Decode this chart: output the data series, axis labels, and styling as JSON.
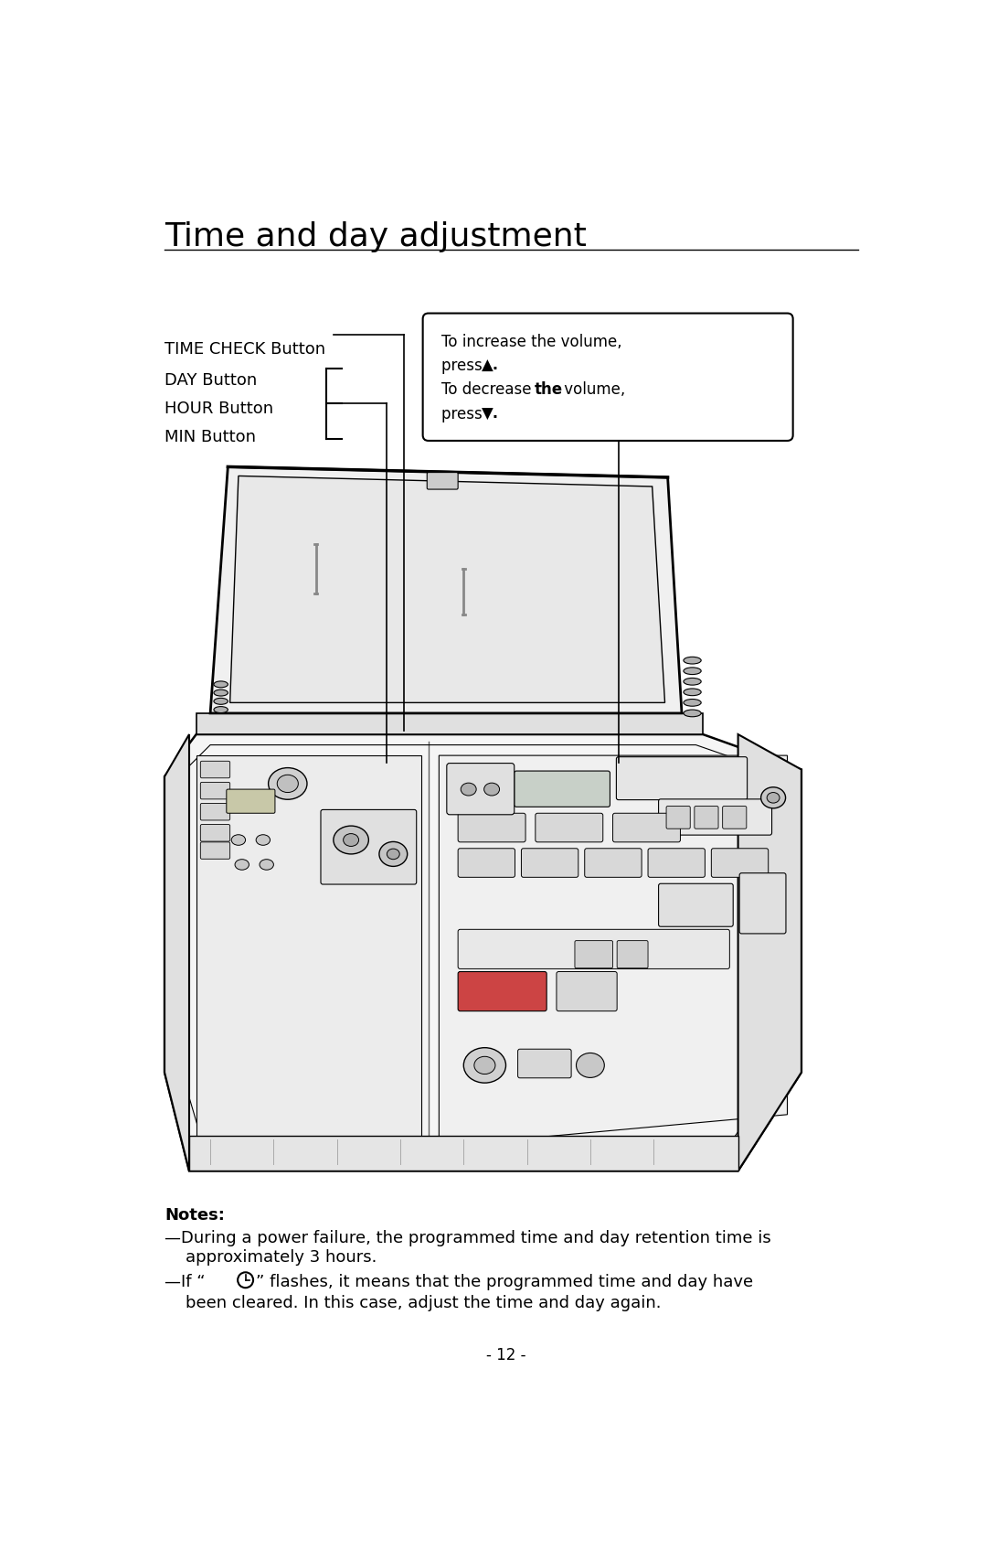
{
  "title": "Time and day adjustment",
  "page_number": "- 12 -",
  "bg_color": "#ffffff",
  "text_color": "#000000",
  "label_time_check": "TIME CHECK Button",
  "label_day": "DAY Button",
  "label_hour": "HOUR Button",
  "label_min": "MIN Button",
  "callout_line1": "To increase the volume,",
  "callout_line2a": "press ",
  "callout_line2b": "▲.",
  "callout_line3a": "To decrease ",
  "callout_line3b": "the",
  "callout_line3c": " volume,",
  "callout_line4a": "press ",
  "callout_line4b": "▼.",
  "notes_title": "Notes:",
  "note1": "—During a power failure, the programmed time and day retention time is",
  "note1b": "    approximately 3 hours.",
  "note2a": "—If “",
  "note2b": "” flashes, it means that the programmed time and day have",
  "note2c": "    been cleared. In this case, adjust the time and day again.",
  "font_size_title": 26,
  "font_size_label": 13,
  "font_size_callout": 12,
  "font_size_notes": 13,
  "font_size_page": 12
}
